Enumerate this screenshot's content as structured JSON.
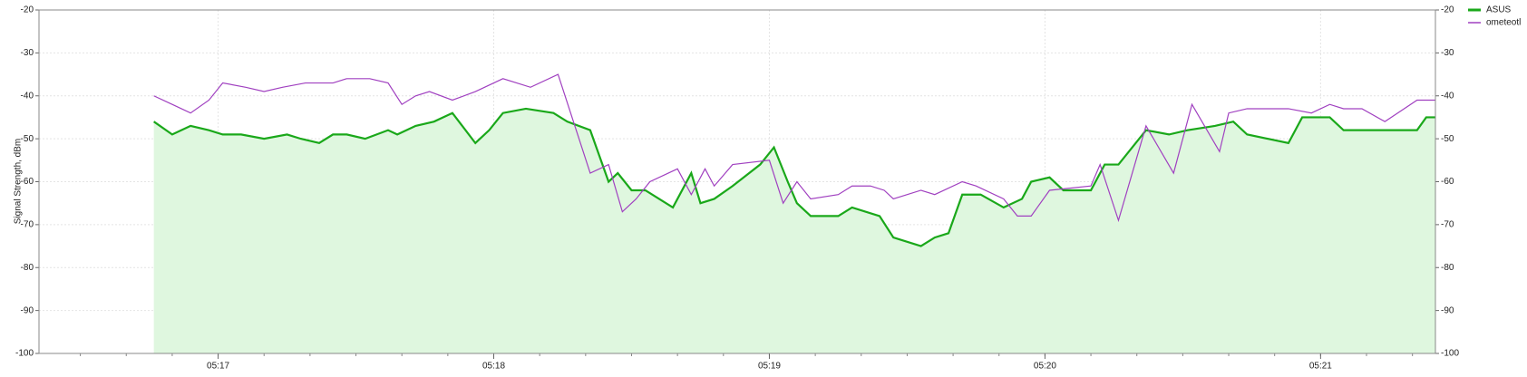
{
  "chart_data": {
    "type": "line",
    "y_label": "Signal Strength, dBm",
    "xlim": [
      981,
      1285
    ],
    "xticks": [
      {
        "value": 1020,
        "label": "05:17"
      },
      {
        "value": 1080,
        "label": "05:18"
      },
      {
        "value": 1140,
        "label": "05:19"
      },
      {
        "value": 1200,
        "label": "05:20"
      },
      {
        "value": 1260,
        "label": "05:21"
      }
    ],
    "ylim": [
      -100,
      -20
    ],
    "yticks": [
      -20,
      -30,
      -40,
      -50,
      -60,
      -70,
      -80,
      -90,
      -100
    ],
    "grid": true,
    "legend": "top-right",
    "series": [
      {
        "name": "ASUS",
        "color": "#1aa81a",
        "fill": "#dff7df",
        "x": [
          1006,
          1010,
          1014,
          1018,
          1021,
          1025,
          1030,
          1035,
          1038,
          1042,
          1045,
          1048,
          1052,
          1057,
          1059,
          1063,
          1067,
          1071,
          1076,
          1079,
          1082,
          1087,
          1093,
          1096,
          1101,
          1105,
          1107,
          1110,
          1113,
          1119,
          1123,
          1125,
          1128,
          1132,
          1138,
          1141,
          1144,
          1146,
          1149,
          1155,
          1158,
          1164,
          1167,
          1173,
          1176,
          1179,
          1182,
          1186,
          1191,
          1195,
          1197,
          1201,
          1204,
          1210,
          1213,
          1216,
          1222,
          1227,
          1231,
          1237,
          1241,
          1244,
          1253,
          1256,
          1262,
          1265,
          1281,
          1283,
          1285
        ],
        "values": [
          -46,
          -49,
          -47,
          -48,
          -49,
          -49,
          -50,
          -49,
          -50,
          -51,
          -49,
          -49,
          -50,
          -48,
          -49,
          -47,
          -46,
          -44,
          -51,
          -48,
          -44,
          -43,
          -44,
          -46,
          -48,
          -60,
          -58,
          -62,
          -62,
          -66,
          -58,
          -65,
          -64,
          -61,
          -56,
          -52,
          -60,
          -65,
          -68,
          -68,
          -66,
          -68,
          -73,
          -75,
          -73,
          -72,
          -63,
          -63,
          -66,
          -64,
          -60,
          -59,
          -62,
          -62,
          -56,
          -56,
          -48,
          -49,
          -48,
          -47,
          -46,
          -49,
          -51,
          -45,
          -45,
          -48,
          -48,
          -45,
          -45
        ]
      },
      {
        "name": "ometeotl",
        "color": "#a040c0",
        "x": [
          1006,
          1010,
          1014,
          1018,
          1021,
          1026,
          1030,
          1034,
          1039,
          1045,
          1048,
          1053,
          1057,
          1060,
          1063,
          1066,
          1071,
          1076,
          1082,
          1088,
          1094,
          1101,
          1105,
          1108,
          1111,
          1114,
          1120,
          1123,
          1126,
          1128,
          1132,
          1140,
          1143,
          1146,
          1149,
          1155,
          1158,
          1162,
          1165,
          1167,
          1173,
          1176,
          1182,
          1185,
          1191,
          1194,
          1197,
          1201,
          1210,
          1212,
          1216,
          1222,
          1228,
          1232,
          1238,
          1240,
          1244,
          1253,
          1258,
          1262,
          1265,
          1269,
          1274,
          1281,
          1285
        ],
        "values": [
          -40,
          -42,
          -44,
          -41,
          -37,
          -38,
          -39,
          -38,
          -37,
          -37,
          -36,
          -36,
          -37,
          -42,
          -40,
          -39,
          -41,
          -39,
          -36,
          -38,
          -35,
          -58,
          -56,
          -67,
          -64,
          -60,
          -57,
          -63,
          -57,
          -61,
          -56,
          -55,
          -65,
          -60,
          -64,
          -63,
          -61,
          -61,
          -62,
          -64,
          -62,
          -63,
          -60,
          -61,
          -64,
          -68,
          -68,
          -62,
          -61,
          -56,
          -69,
          -47,
          -58,
          -42,
          -53,
          -44,
          -43,
          -43,
          -44,
          -42,
          -43,
          -43,
          -46,
          -41,
          -41
        ]
      }
    ]
  }
}
